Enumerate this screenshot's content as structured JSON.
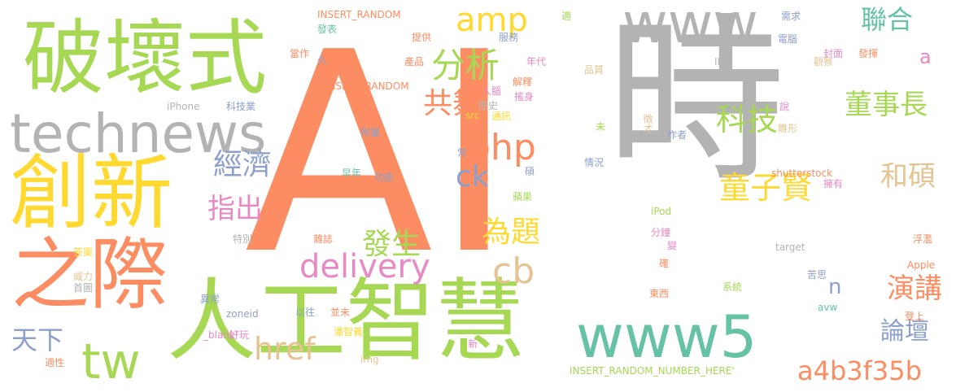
{
  "words": [
    {
      "text": "AI",
      "color": "#fc8d62"
    },
    {
      "text": "時",
      "color": "#b3b3b3"
    },
    {
      "text": "破壞式",
      "color": "#a6d854"
    },
    {
      "text": "technews",
      "color": "#b3b3b3"
    },
    {
      "text": "創新",
      "color": "#ffd92f"
    },
    {
      "text": "之際",
      "color": "#fc8d62"
    },
    {
      "text": "人工智慧",
      "color": "#a6d854"
    },
    {
      "text": "tw",
      "color": "#a6d854"
    },
    {
      "text": "www",
      "color": "#b3b3b3"
    },
    {
      "text": "www5",
      "color": "#66c2a5"
    },
    {
      "text": "amp",
      "color": "#ffd92f"
    },
    {
      "text": "分析",
      "color": "#a6d854"
    },
    {
      "text": "共舞",
      "color": "#fc8d62"
    },
    {
      "text": "php",
      "color": "#fc8d62"
    },
    {
      "text": "ck",
      "color": "#8da0cb"
    },
    {
      "text": "delivery",
      "color": "#e78ac3"
    },
    {
      "text": "cb",
      "color": "#e5c494"
    },
    {
      "text": "href",
      "color": "#e5c494"
    },
    {
      "text": "發生",
      "color": "#a6d854"
    },
    {
      "text": "為題",
      "color": "#ffd92f"
    },
    {
      "text": "經濟",
      "color": "#8da0cb"
    },
    {
      "text": "指出",
      "color": "#e78ac3"
    },
    {
      "text": "天下",
      "color": "#8da0cb"
    },
    {
      "text": "科技",
      "color": "#a6d854"
    },
    {
      "text": "童子賢",
      "color": "#ffd92f"
    },
    {
      "text": "聯合",
      "color": "#66c2a5"
    },
    {
      "text": "董事長",
      "color": "#a6d854"
    },
    {
      "text": "和碩",
      "color": "#e5c494"
    },
    {
      "text": "a",
      "color": "#e78ac3"
    },
    {
      "text": "n",
      "color": "#8da0cb"
    },
    {
      "text": "演講",
      "color": "#fc8d62"
    },
    {
      "text": "論壇",
      "color": "#8da0cb"
    },
    {
      "text": "a4b3f35b",
      "color": "#fc8d62"
    },
    {
      "text": "INSERT_RANDOM",
      "color": "#fc8d62"
    },
    {
      "text": "INSERT_RANDOM",
      "color": "#fc8d62"
    },
    {
      "text": "INSERT_RANDOM_NUMBER_HERE'",
      "color": "#a6d854"
    },
    {
      "text": "shutterstock",
      "color": "#fc8d62"
    },
    {
      "text": "iPhone",
      "color": "#b3b3b3"
    },
    {
      "text": "iPod",
      "color": "#a6d854"
    },
    {
      "text": "Apple",
      "color": "#fc8d62"
    },
    {
      "text": "target",
      "color": "#b3b3b3"
    },
    {
      "text": "avw",
      "color": "#66c2a5"
    },
    {
      "text": "zoneid",
      "color": "#8da0cb"
    },
    {
      "text": "_blank'",
      "color": "#e78ac3"
    },
    {
      "text": "img",
      "color": "#e5c494"
    },
    {
      "text": "src",
      "color": "#ffd92f"
    },
    {
      "text": "II",
      "color": "#b3b3b3"
    },
    {
      "text": "發表",
      "color": "#66c2a5"
    },
    {
      "text": "提供",
      "color": "#fc8d62"
    },
    {
      "text": "服務",
      "color": "#8da0cb"
    },
    {
      "text": "當作",
      "color": "#fc8d62"
    },
    {
      "text": "產品",
      "color": "#fc8d62"
    },
    {
      "text": "年代",
      "color": "#e78ac3"
    },
    {
      "text": "解釋",
      "color": "#fc8d62"
    },
    {
      "text": "搖身",
      "color": "#e78ac3"
    },
    {
      "text": "人腦",
      "color": "#e78ac3"
    },
    {
      "text": "歷史",
      "color": "#b3b3b3"
    },
    {
      "text": "通訊",
      "color": "#ffd92f"
    },
    {
      "text": "科技業",
      "color": "#8da0cb"
    },
    {
      "text": "附屬",
      "color": "#8da0cb"
    },
    {
      "text": "來源",
      "color": "#fc8d62"
    },
    {
      "text": "早年",
      "color": "#66c2a5"
    },
    {
      "text": "功能",
      "color": "#8da0cb"
    },
    {
      "text": "蘋果",
      "color": "#a6d854"
    },
    {
      "text": "電腦",
      "color": "#8da0cb"
    },
    {
      "text": "封面",
      "color": "#e78ac3"
    },
    {
      "text": "發揮",
      "color": "#fc8d62"
    },
    {
      "text": "觀察",
      "color": "#e5c494"
    },
    {
      "text": "品質",
      "color": "#e5c494"
    },
    {
      "text": "需求",
      "color": "#8da0cb"
    },
    {
      "text": "說",
      "color": "#e78ac3"
    },
    {
      "text": "作者",
      "color": "#8da0cb"
    },
    {
      "text": "情況",
      "color": "#8da0cb"
    },
    {
      "text": "擁有",
      "color": "#e78ac3"
    },
    {
      "text": "分鐘",
      "color": "#e78ac3"
    },
    {
      "text": "系統",
      "color": "#a6d854"
    },
    {
      "text": "苦思",
      "color": "#8da0cb"
    },
    {
      "text": "東西",
      "color": "#fc8d62"
    },
    {
      "text": "登上",
      "color": "#fc8d62"
    },
    {
      "text": "特別",
      "color": "#b3b3b3"
    },
    {
      "text": "答案",
      "color": "#ffd92f"
    },
    {
      "text": "威力",
      "color": "#e5c494"
    },
    {
      "text": "首圖",
      "color": "#b3b3b3"
    },
    {
      "text": "異常",
      "color": "#8da0cb"
    },
    {
      "text": "好玩",
      "color": "#e78ac3"
    },
    {
      "text": "以往",
      "color": "#8da0cb"
    },
    {
      "text": "並未",
      "color": "#fc8d62"
    },
    {
      "text": "潘智義",
      "color": "#ffd92f"
    },
    {
      "text": "適性",
      "color": "#fc8d62"
    },
    {
      "text": "雜誌",
      "color": "#fc8d62"
    },
    {
      "text": "新",
      "color": "#e78ac3"
    },
    {
      "text": "適",
      "color": "#a6d854"
    },
    {
      "text": "久",
      "color": "#8da0cb"
    },
    {
      "text": "常",
      "color": "#8da0cb"
    },
    {
      "text": "碩",
      "color": "#8da0cb"
    },
    {
      "text": "未",
      "color": "#a6d854"
    },
    {
      "text": "徵才",
      "color": "#e5c494"
    },
    {
      "text": "雛形",
      "color": "#e5c494"
    },
    {
      "text": "變",
      "color": "#e78ac3"
    },
    {
      "text": "確",
      "color": "#fc8d62"
    },
    {
      "text": "浮濫",
      "color": "#fc8d62"
    }
  ]
}
